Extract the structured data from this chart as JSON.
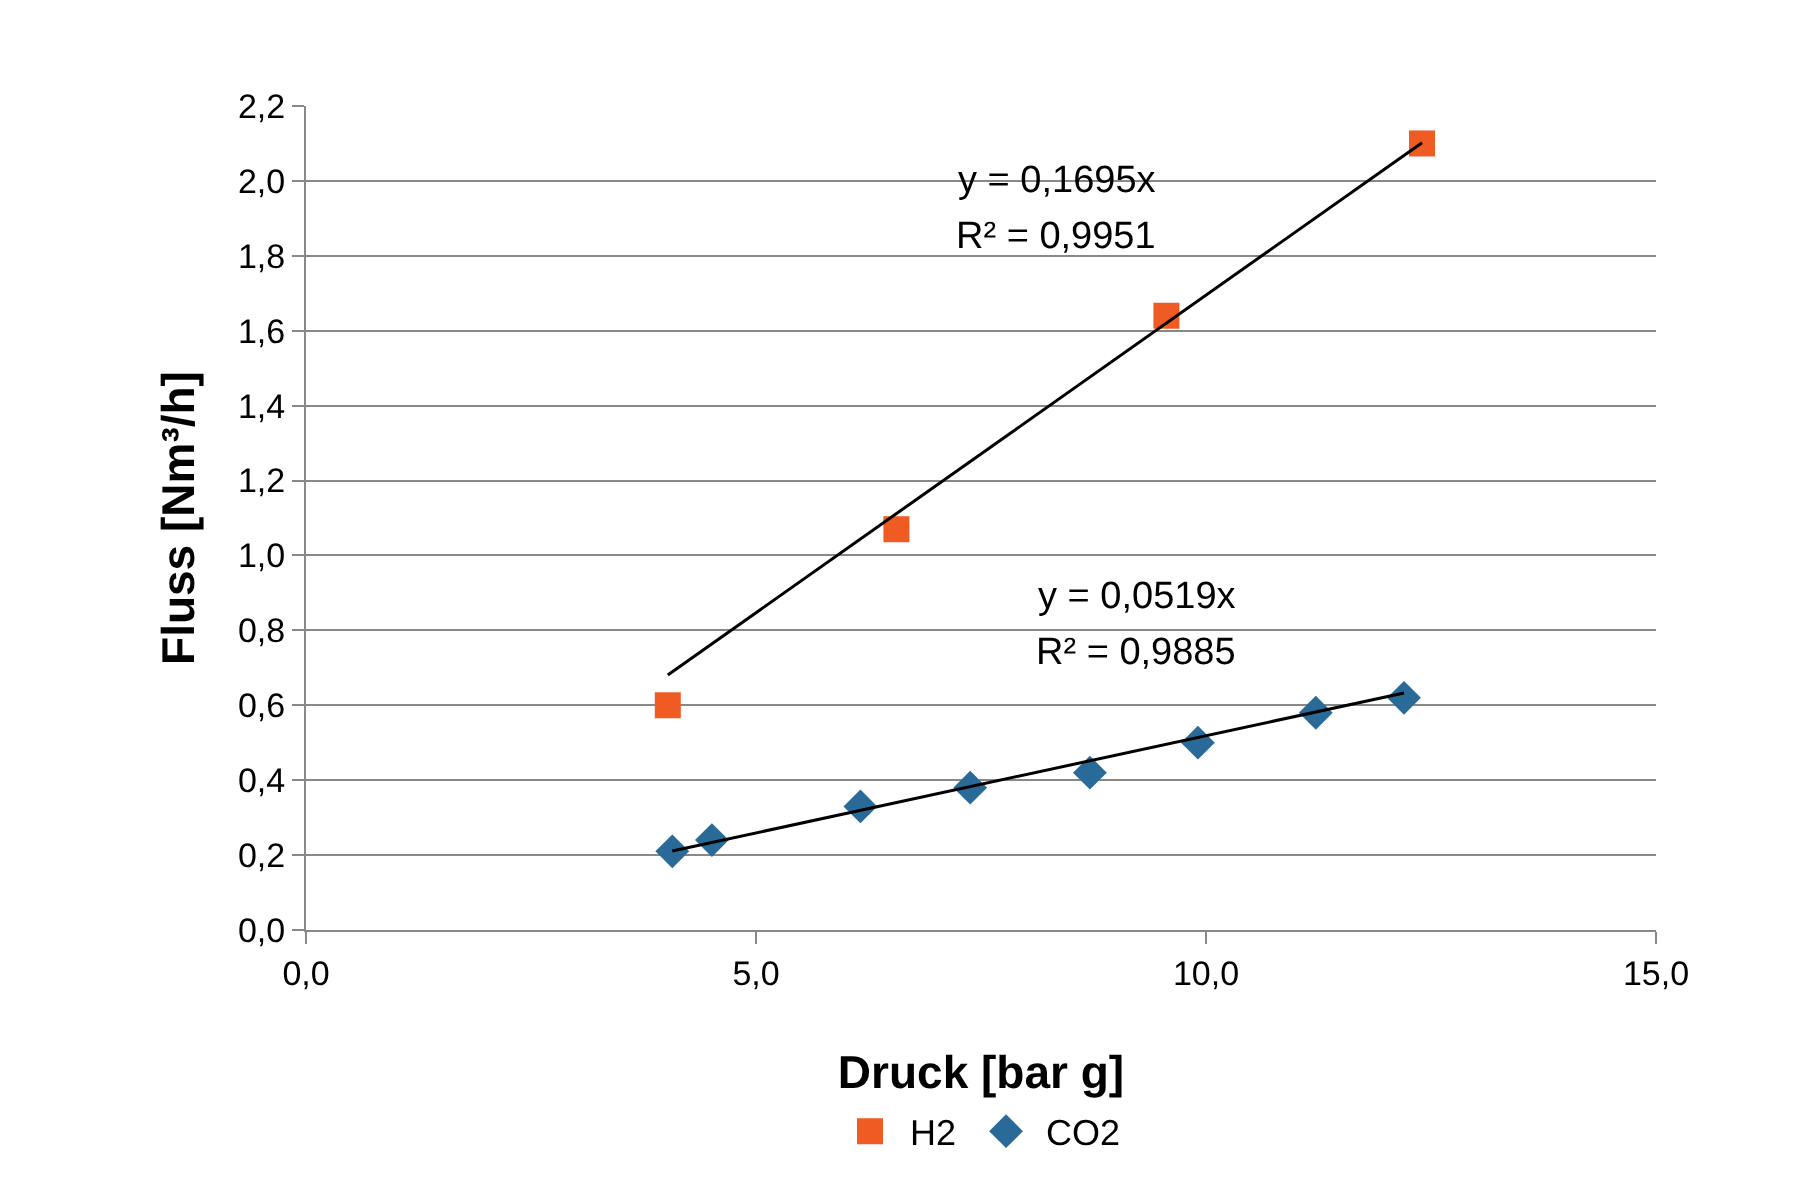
{
  "chart_data": {
    "type": "scatter",
    "xlabel": "Druck [bar g]",
    "ylabel": "Fluss [Nm³/h]",
    "series": [
      {
        "name": "H2",
        "color": "#f05a23",
        "marker": "square",
        "x": [
          4.02,
          6.56,
          9.56,
          12.4
        ],
        "values": [
          0.6,
          1.07,
          1.64,
          2.1
        ]
      },
      {
        "name": "CO2",
        "color": "#2a6a98",
        "marker": "diamond",
        "x": [
          4.07,
          4.51,
          6.16,
          7.38,
          8.71,
          9.91,
          11.22,
          12.2
        ],
        "values": [
          0.21,
          0.24,
          0.33,
          0.38,
          0.42,
          0.5,
          0.58,
          0.62
        ]
      },
      {
        "type": "line",
        "color": "#000000",
        "marker": "none",
        "x": [
          4.02,
          12.4
        ],
        "values": [
          0.681,
          2.102
        ]
      },
      {
        "type": "line",
        "color": "#000000",
        "marker": "none",
        "x": [
          4.07,
          12.2
        ],
        "values": [
          0.211,
          0.633
        ]
      }
    ],
    "annotations": [
      "y = 0,1695x",
      "R² = 0,9951",
      "y = 0,0519x",
      "R² = 0,9885"
    ],
    "xlim": [
      0,
      15
    ],
    "xticks": [
      {
        "value": 0,
        "label": "0,0"
      },
      {
        "value": 5,
        "label": "5,0"
      },
      {
        "value": 10,
        "label": "10,0"
      },
      {
        "value": 15,
        "label": "15,0"
      }
    ],
    "ylim": [
      0,
      2.2
    ],
    "yticks": [
      {
        "value": 0,
        "label": "0,0"
      },
      {
        "value": 0.2,
        "label": "0,2"
      },
      {
        "value": 0.4,
        "label": "0,4"
      },
      {
        "value": 0.6,
        "label": "0,6"
      },
      {
        "value": 0.8,
        "label": "0,8"
      },
      {
        "value": 1.0,
        "label": "1,0"
      },
      {
        "value": 1.2,
        "label": "1,2"
      },
      {
        "value": 1.4,
        "label": "1,4"
      },
      {
        "value": 1.6,
        "label": "1,6"
      },
      {
        "value": 1.8,
        "label": "1,8"
      },
      {
        "value": 2.0,
        "label": "2,0"
      },
      {
        "value": 2.2,
        "label": "2,2"
      }
    ],
    "grid": "y",
    "legend": "bottom"
  }
}
